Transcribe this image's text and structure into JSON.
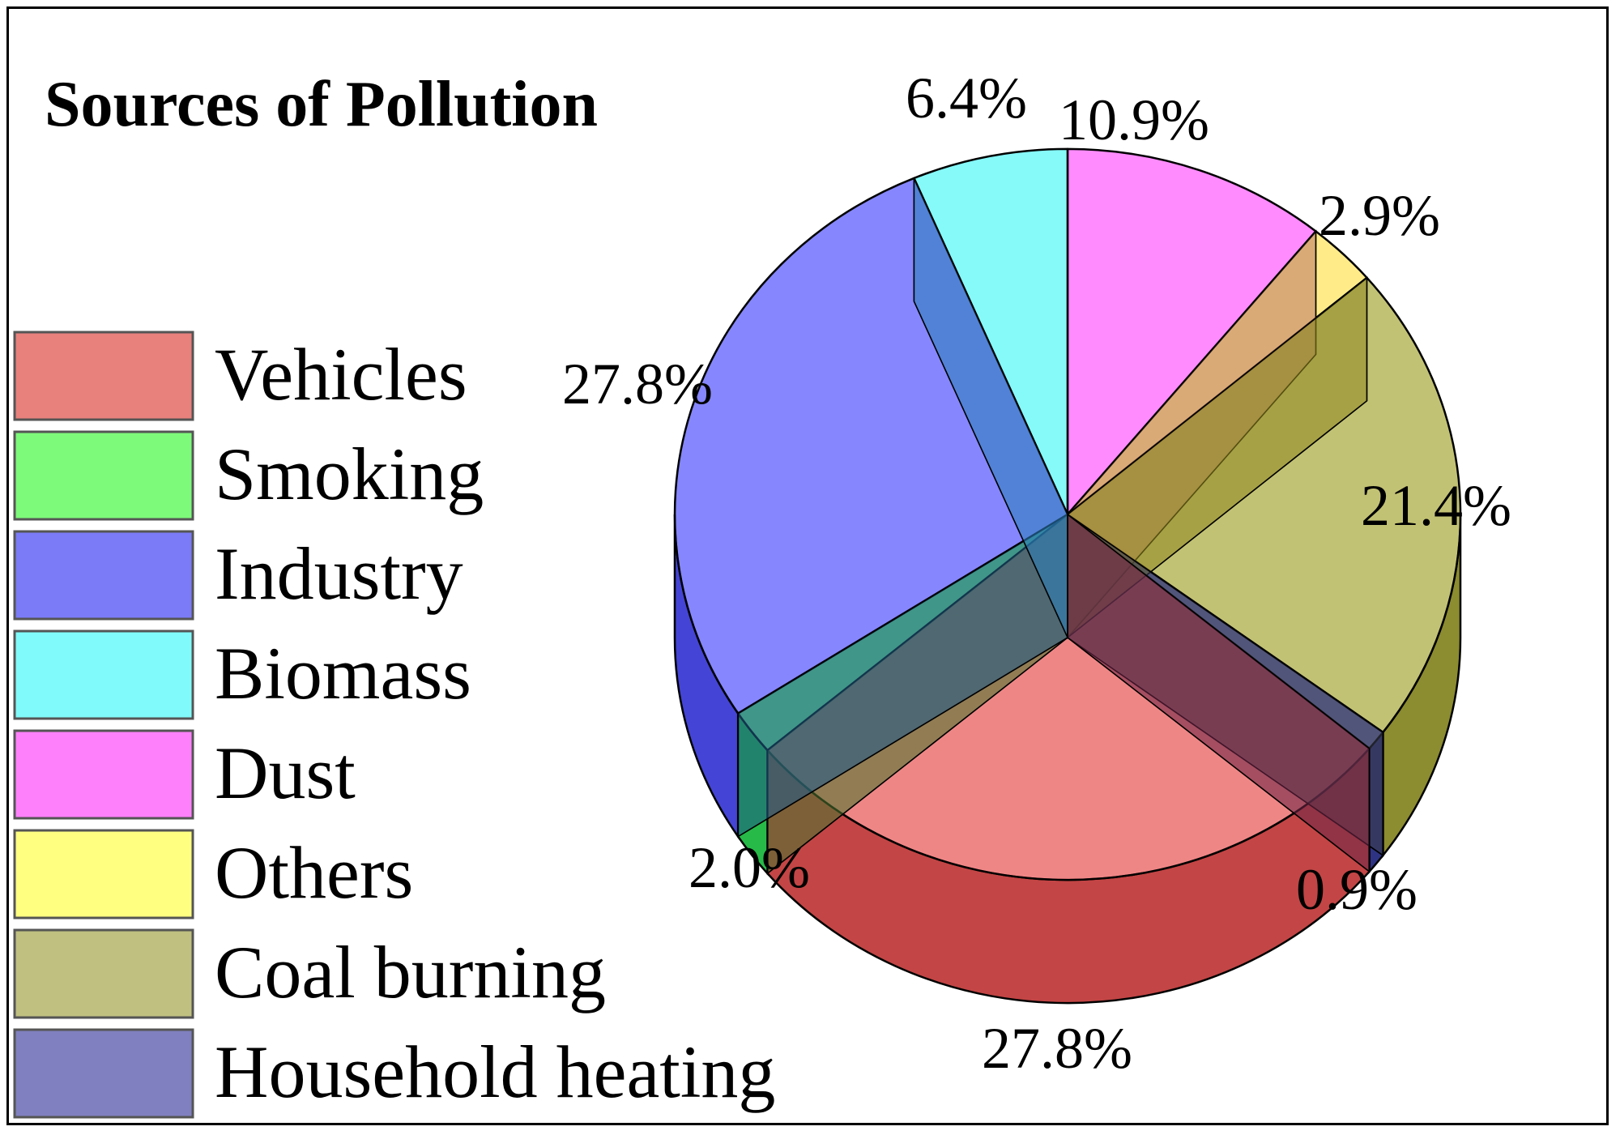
{
  "chart_data": {
    "type": "pie",
    "title": "Sources of Pollution",
    "legend_position": "left",
    "three_d": true,
    "categories": [
      "Vehicles",
      "Smoking",
      "Industry",
      "Biomass",
      "Dust",
      "Others",
      "Coal burning",
      "Household heating"
    ],
    "values": [
      27.8,
      2.0,
      27.8,
      6.4,
      10.9,
      2.9,
      21.4,
      0.9
    ],
    "value_labels": [
      "27.8%",
      "2.0%",
      "27.8%",
      "6.4%",
      "10.9%",
      "2.9%",
      "21.4%",
      "0.9%"
    ],
    "colors": [
      "#e53c3c",
      "#14d940",
      "#3b3bff",
      "#3cf5f5",
      "#ff44ff",
      "#ffe040",
      "#9c9c1e",
      "#1c2490"
    ],
    "legend_colors": [
      "#e8807c",
      "#7dfa7a",
      "#7b7bf8",
      "#80fafa",
      "#ff80fb",
      "#ffff80",
      "#c0c080",
      "#8080c0"
    ]
  }
}
